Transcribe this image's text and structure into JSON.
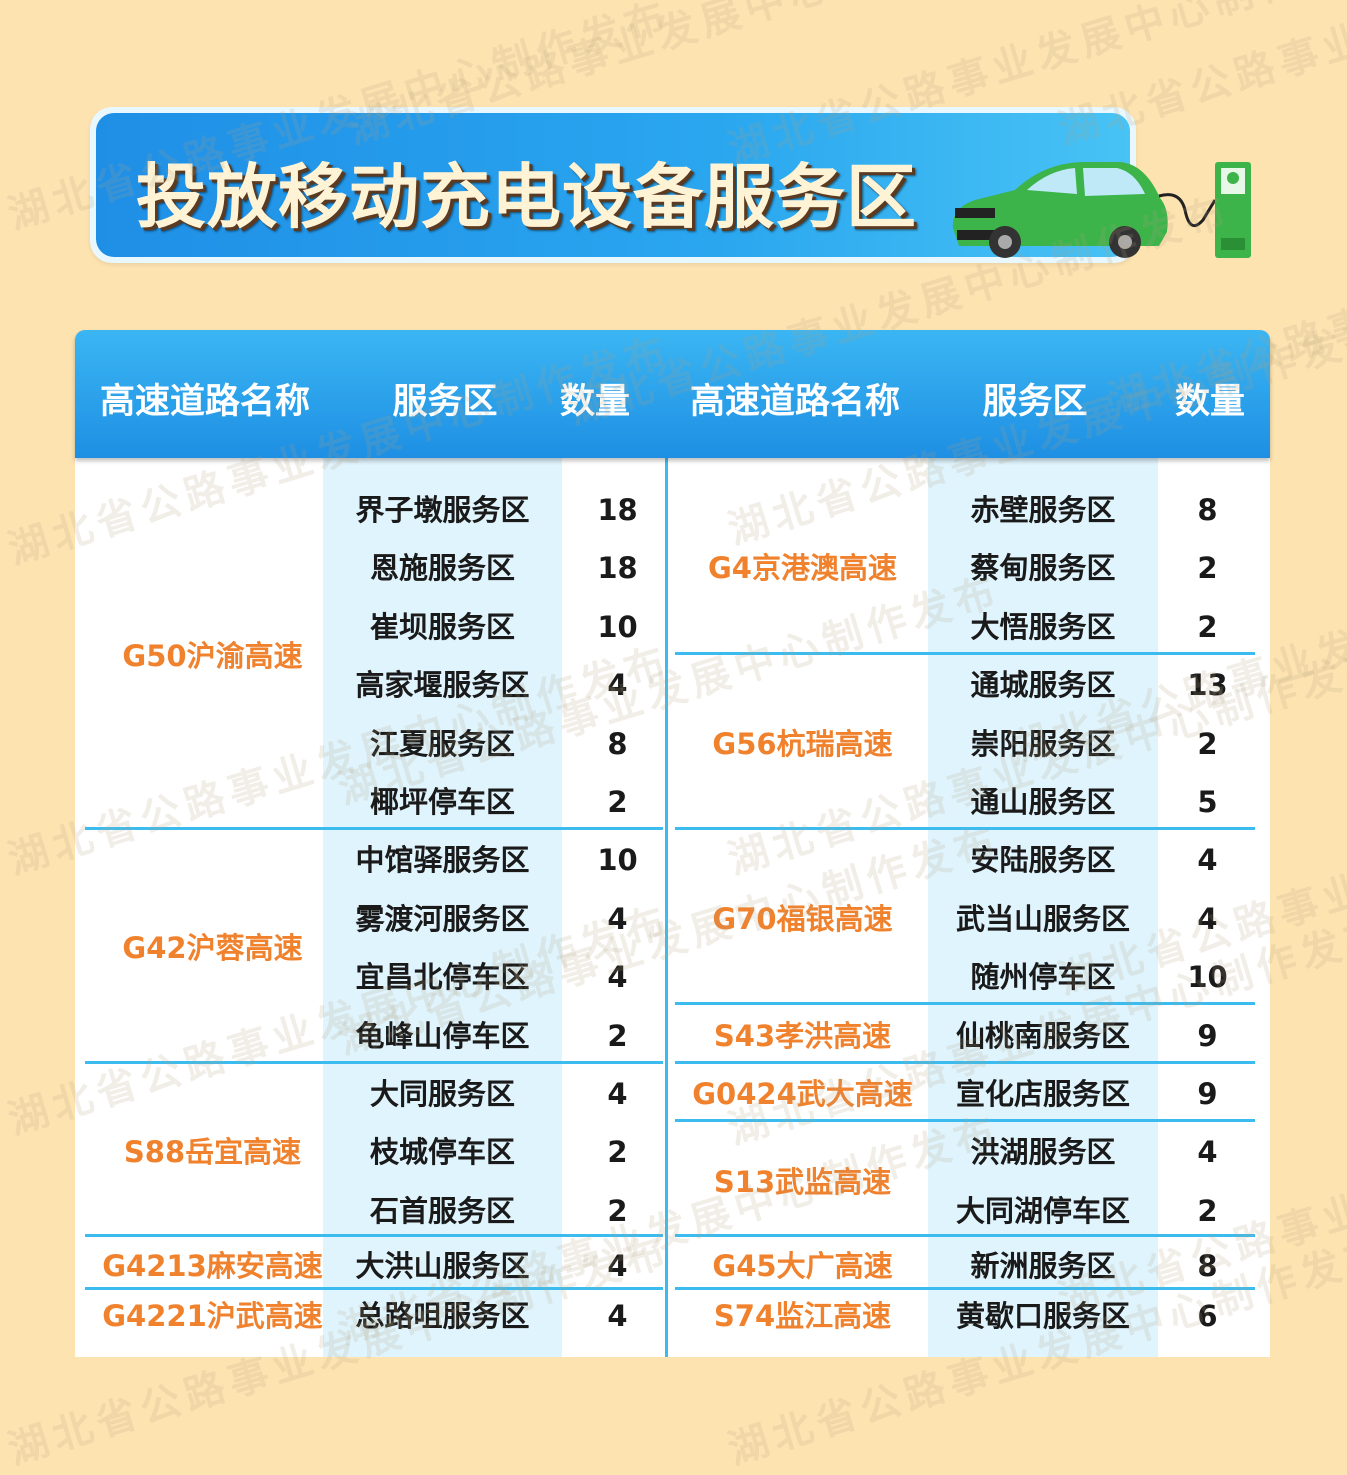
{
  "title": "投放移动充电设备服务区",
  "watermark": "湖北省公路事业发展中心制作发布",
  "colors": {
    "background": "#fde3b0",
    "header": "#1e8fe3",
    "road_text": "#f0822e",
    "stripe": "#e0f4fd",
    "separator": "#3cbcee",
    "car": "#3cb44a"
  },
  "icons": {
    "banner_illustration": "electric-car-charging-icon"
  },
  "headers": {
    "left": [
      "高速道路名称",
      "服务区",
      "数量"
    ],
    "right": [
      "高速道路名称",
      "服务区",
      "数量"
    ]
  },
  "left_groups": [
    {
      "road": "G50沪渝高速",
      "rows": [
        [
          "界子墩服务区",
          "18"
        ],
        [
          "恩施服务区",
          "18"
        ],
        [
          "崔坝服务区",
          "10"
        ],
        [
          "高家堰服务区",
          "4"
        ],
        [
          "江夏服务区",
          "8"
        ],
        [
          "椰坪停车区",
          "2"
        ]
      ]
    },
    {
      "road": "G42沪蓉高速",
      "rows": [
        [
          "中馆驿服务区",
          "10"
        ],
        [
          "雾渡河服务区",
          "4"
        ],
        [
          "宜昌北停车区",
          "4"
        ],
        [
          "龟峰山停车区",
          "2"
        ]
      ]
    },
    {
      "road": "S88岳宜高速",
      "rows": [
        [
          "大同服务区",
          "4"
        ],
        [
          "枝城停车区",
          "2"
        ],
        [
          "石首服务区",
          "2"
        ]
      ]
    },
    {
      "road": "G4213麻安高速",
      "rows": [
        [
          "大洪山服务区",
          "4"
        ]
      ]
    },
    {
      "road": "G4221沪武高速",
      "rows": [
        [
          "总路咀服务区",
          "4"
        ]
      ]
    }
  ],
  "right_groups": [
    {
      "road": "G4京港澳高速",
      "rows": [
        [
          "赤壁服务区",
          "8"
        ],
        [
          "蔡甸服务区",
          "2"
        ],
        [
          "大悟服务区",
          "2"
        ]
      ]
    },
    {
      "road": "G56杭瑞高速",
      "rows": [
        [
          "通城服务区",
          "13"
        ],
        [
          "崇阳服务区",
          "2"
        ],
        [
          "通山服务区",
          "5"
        ]
      ]
    },
    {
      "road": "G70福银高速",
      "rows": [
        [
          "安陆服务区",
          "4"
        ],
        [
          "武当山服务区",
          "4"
        ],
        [
          "随州停车区",
          "10"
        ]
      ]
    },
    {
      "road": "S43孝洪高速",
      "rows": [
        [
          "仙桃南服务区",
          "9"
        ]
      ]
    },
    {
      "road": "G0424武大高速",
      "rows": [
        [
          "宣化店服务区",
          "9"
        ]
      ]
    },
    {
      "road": "S13武监高速",
      "rows": [
        [
          "洪湖服务区",
          "4"
        ],
        [
          "大同湖停车区",
          "2"
        ]
      ]
    },
    {
      "road": "G45大广高速",
      "rows": [
        [
          "新洲服务区",
          "8"
        ]
      ]
    },
    {
      "road": "S74监江高速",
      "rows": [
        [
          "黄歇口服务区",
          "6"
        ]
      ]
    }
  ]
}
